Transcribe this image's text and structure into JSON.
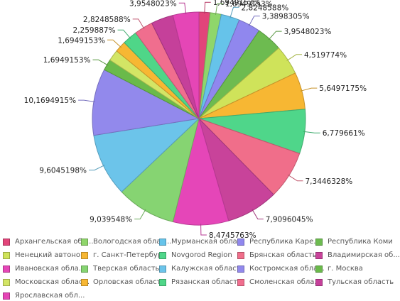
{
  "chart_data": {
    "type": "pie",
    "title": "",
    "series": [
      {
        "name": "Архангельская обл...",
        "value": 1.6949153,
        "label": "1,6949153%",
        "color": "#e2457a"
      },
      {
        "name": "Вологодская облас...",
        "value": 1.6949153,
        "label": "1,6949153%",
        "color": "#8fd66b"
      },
      {
        "name": "Мурманская обла...",
        "value": 2.8248588,
        "label": "2,8248588%",
        "color": "#66c3ea"
      },
      {
        "name": "Республика Каре...",
        "value": 3.3898305,
        "label": "3,3898305%",
        "color": "#9087ee"
      },
      {
        "name": "Республика Коми",
        "value": 3.9548023,
        "label": "3,9548023%",
        "color": "#6dbb50"
      },
      {
        "name": "Ненецкий автоно...",
        "value": 4.519774,
        "label": "4,519774%",
        "color": "#cfe35a"
      },
      {
        "name": "г. Санкт-Петербург",
        "value": 5.6497175,
        "label": "5,6497175%",
        "color": "#f7b733"
      },
      {
        "name": "Novgorod Region",
        "value": 6.779661,
        "label": "6,779661%",
        "color": "#4fd68a"
      },
      {
        "name": "Брянская область",
        "value": 7.3446328,
        "label": "7,3446328%",
        "color": "#f06e8a"
      },
      {
        "name": "Владимирская об...",
        "value": 7.9096045,
        "label": "7,9096045%",
        "color": "#c8439a"
      },
      {
        "name": "Ивановская обла...",
        "value": 8.4745763,
        "label": "8,4745763%",
        "color": "#e546b8"
      },
      {
        "name": "Тверская область",
        "value": 9.039548,
        "label": "9,039548%",
        "color": "#86d472"
      },
      {
        "name": "Калужская область",
        "value": 9.6045198,
        "label": "9,6045198%",
        "color": "#6cc4ea"
      },
      {
        "name": "Костромская обла...",
        "value": 10.1694915,
        "label": "10,1694915%",
        "color": "#9289ec"
      },
      {
        "name": "г. Москва",
        "value": 1.6949153,
        "label": "1,6949153%",
        "color": "#6aba4a"
      },
      {
        "name": "Московская облас...",
        "value": 1.6949153,
        "label": "",
        "color": "#d3e565"
      },
      {
        "name": "Орловская область",
        "value": 1.6949153,
        "label": "1,6949153%",
        "color": "#f7b733"
      },
      {
        "name": "Рязанская область",
        "value": 2.259887,
        "label": "2,259887%",
        "color": "#4fd688"
      },
      {
        "name": "Смоленская обла...",
        "value": 2.8248588,
        "label": "2,8248588%",
        "color": "#f06e8e"
      },
      {
        "name": "Тульская область",
        "value": 3.3898305,
        "label": "",
        "color": "#c5409a"
      },
      {
        "name": "Ярославская обл...",
        "value": 3.9548023,
        "label": "3,9548023%",
        "color": "#e546b6"
      }
    ]
  }
}
